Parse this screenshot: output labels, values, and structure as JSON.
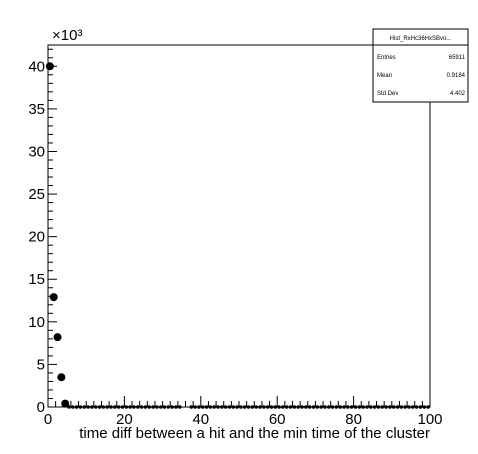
{
  "chart_data": {
    "type": "scatter",
    "title": "",
    "xlabel": "time diff between a hit and the min time of the cluster",
    "ylabel": "",
    "y_multiplier_label": "×10³",
    "xlim": [
      0,
      100
    ],
    "ylim": [
      0,
      42.5
    ],
    "y_unit_scale": 1000,
    "x_ticks": [
      0,
      20,
      40,
      60,
      80,
      100
    ],
    "y_ticks": [
      0,
      5,
      10,
      15,
      20,
      25,
      30,
      35,
      40
    ],
    "grid": false,
    "series": [
      {
        "marker": "filled-circle",
        "color": "#000000",
        "x": [
          0.5,
          1.5,
          2.5,
          3.5,
          4.5
        ],
        "y": [
          40.0,
          12.9,
          8.2,
          3.5,
          0.4
        ]
      }
    ],
    "zero_bins": {
      "x_ranges": [
        [
          5,
          35
        ],
        [
          37,
          100
        ]
      ],
      "y": 0
    },
    "stats_box": {
      "name": "Hist_RxHc36HxSBvo...",
      "rows": [
        {
          "label": "Entries",
          "value": "65911"
        },
        {
          "label": "Mean",
          "value": "0.9184"
        },
        {
          "label": "Std Dev",
          "value": "4.402"
        }
      ]
    }
  }
}
